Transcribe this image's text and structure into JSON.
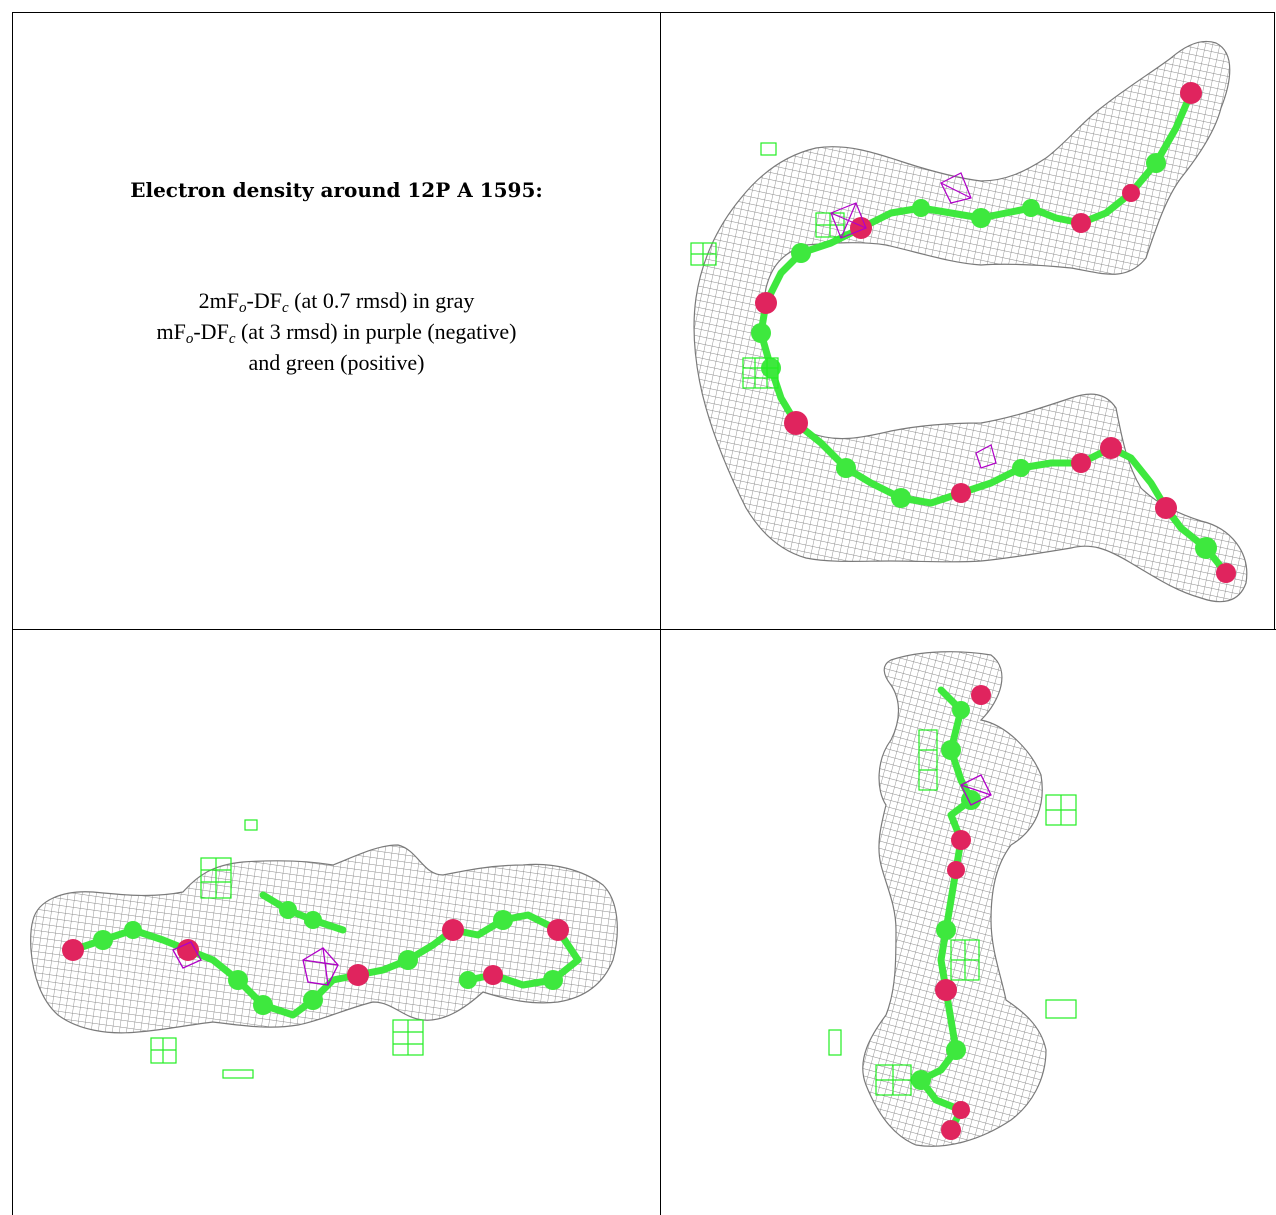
{
  "legend": {
    "title": "Electron density around 12P A 1595:",
    "line1": {
      "a": "2mF",
      "a_sub": "o",
      "b": "-DF",
      "b_sub": "c",
      "rest": " (at 0.7 rmsd) in gray"
    },
    "line2": {
      "a": "mF",
      "a_sub": "o",
      "b": "-DF",
      "b_sub": "c",
      "rest": " (at 3 rmsd) in purple (negative)"
    },
    "line3": "and green (positive)"
  },
  "colors": {
    "mesh_gray": "#9a9a9a",
    "positive_green": "#22ee22",
    "negative_purple": "#b000c8",
    "atom_green": "#3ee83e",
    "atom_red": "#e0245e"
  },
  "views": [
    {
      "name": "density-view-1"
    },
    {
      "name": "density-view-2"
    },
    {
      "name": "density-view-3"
    }
  ]
}
